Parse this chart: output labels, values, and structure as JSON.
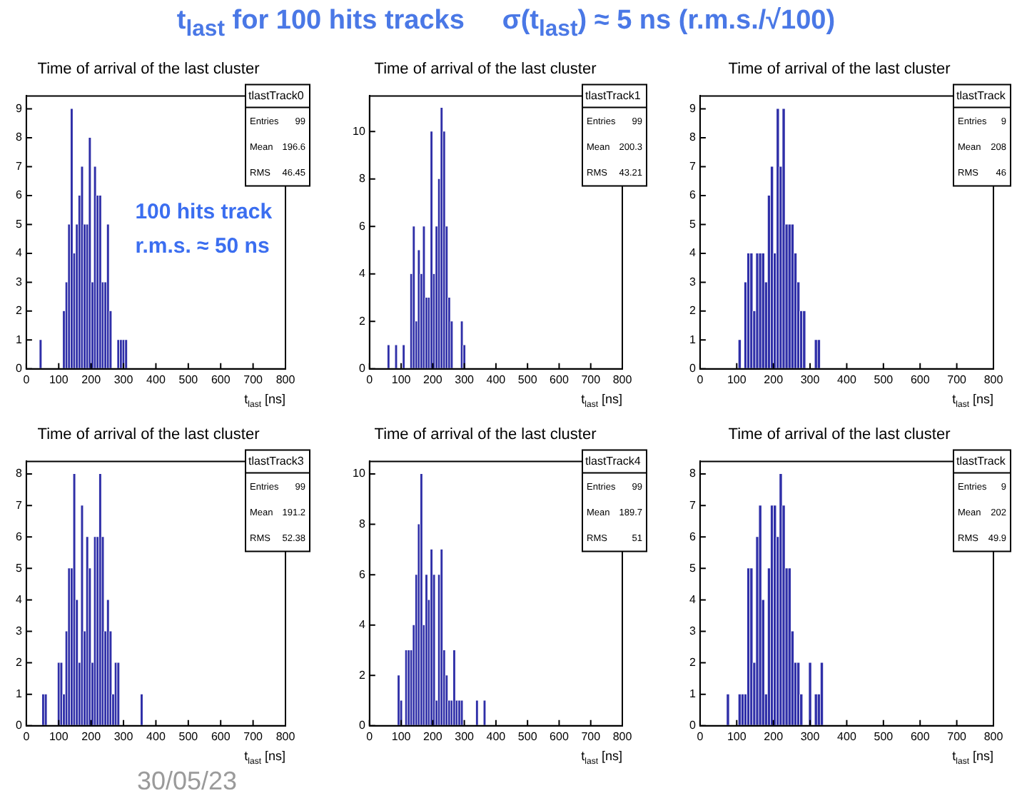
{
  "chart_data": [
    {
      "type": "histogram",
      "title": "Time of arrival of the last cluster",
      "xlabel": "t$_{last}$ [ns]",
      "color": "#2f2fa8",
      "bins": [
        40,
        48,
        56,
        64,
        72,
        80,
        88,
        96,
        104,
        112,
        120,
        128,
        136,
        144,
        152,
        160,
        168,
        176,
        184,
        192,
        200,
        208,
        216,
        224,
        232,
        240,
        248,
        256,
        264,
        272,
        280,
        288,
        296,
        304,
        312,
        320,
        328,
        336,
        344,
        352,
        360,
        368,
        376
      ],
      "values": [
        1,
        0,
        0,
        0,
        0,
        0,
        0,
        0,
        0,
        2,
        3,
        5,
        9,
        4,
        5,
        6,
        7,
        5,
        5,
        8,
        3,
        7,
        6,
        6,
        3,
        3,
        5,
        2,
        0,
        0,
        1,
        1,
        1,
        1,
        0,
        0,
        0,
        0,
        0,
        0,
        0,
        0
      ],
      "xlim": [
        0,
        800
      ],
      "xticks": [
        0,
        100,
        200,
        300,
        400,
        500,
        600,
        700,
        800
      ],
      "ylim": [
        0,
        9.45
      ],
      "yticks": [
        0,
        1,
        2,
        3,
        4,
        5,
        6,
        7,
        8,
        9
      ],
      "annotations": [
        "tlastTrack0",
        "Entries 99",
        "Mean 196.6",
        "RMS 46.45",
        "100 hits track\nr.m.s. ≈ 50 ns",
        "t$_{last}$ for 100 hits tracks     σ(t$_{last}$) ≈ 5 ns (r.m.s./√100)"
      ]
    },
    {
      "type": "histogram",
      "title": "Time of arrival of the last cluster",
      "xlabel": "t$_{last}$ [ns]",
      "color": "#2f2fa8",
      "bins": [
        40,
        48,
        56,
        64,
        72,
        80,
        88,
        96,
        104,
        112,
        120,
        128,
        136,
        144,
        152,
        160,
        168,
        176,
        184,
        192,
        200,
        208,
        216,
        224,
        232,
        240,
        248,
        256,
        264,
        272,
        280,
        288,
        296,
        304,
        312,
        320,
        328,
        336,
        344,
        352,
        360,
        368,
        376
      ],
      "values": [
        0,
        0,
        1,
        0,
        0,
        1,
        0,
        0,
        1,
        0,
        0,
        4,
        6,
        2,
        5,
        4,
        6,
        3,
        3,
        10,
        4,
        6,
        8,
        11,
        10,
        6,
        3,
        2,
        0,
        0,
        0,
        2,
        1,
        0,
        0,
        0,
        0,
        0,
        0,
        0,
        0,
        0
      ],
      "xlim": [
        0,
        800
      ],
      "xticks": [
        0,
        100,
        200,
        300,
        400,
        500,
        600,
        700,
        800
      ],
      "ylim": [
        0,
        11.5
      ],
      "yticks": [
        0,
        2,
        4,
        6,
        8,
        10
      ],
      "annotations": [
        "tlastTrack1",
        "Entries 99",
        "Mean 200.3",
        "RMS 43.21"
      ]
    },
    {
      "type": "histogram",
      "title": "Time of arrival of the last cluster",
      "xlabel": "t$_{last}$ [ns]",
      "color": "#2f2fa8",
      "bins": [
        40,
        48,
        56,
        64,
        72,
        80,
        88,
        96,
        104,
        112,
        120,
        128,
        136,
        144,
        152,
        160,
        168,
        176,
        184,
        192,
        200,
        208,
        216,
        224,
        232,
        240,
        248,
        256,
        264,
        272,
        280,
        288,
        296,
        304,
        312,
        320,
        328,
        336,
        344,
        352,
        360,
        368,
        376
      ],
      "values": [
        0,
        0,
        0,
        0,
        0,
        0,
        0,
        0,
        1,
        0,
        3,
        4,
        4,
        2,
        4,
        4,
        4,
        3,
        6,
        7,
        4,
        9,
        7,
        9,
        5,
        5,
        5,
        4,
        3,
        2,
        2,
        0,
        0,
        0,
        1,
        1,
        0,
        0,
        0,
        0,
        0,
        0
      ],
      "xlim": [
        0,
        800
      ],
      "xticks": [
        0,
        100,
        200,
        300,
        400,
        500,
        600,
        700,
        800
      ],
      "ylim": [
        0,
        9.45
      ],
      "yticks": [
        0,
        1,
        2,
        3,
        4,
        5,
        6,
        7,
        8,
        9
      ],
      "annotations": [
        "tlastTrack",
        "Entries 9",
        "Mean 208",
        "RMS 46"
      ]
    },
    {
      "type": "histogram",
      "title": "Time of arrival of the last cluster",
      "xlabel": "t$_{last}$ [ns]",
      "color": "#2f2fa8",
      "bins": [
        40,
        48,
        56,
        64,
        72,
        80,
        88,
        96,
        104,
        112,
        120,
        128,
        136,
        144,
        152,
        160,
        168,
        176,
        184,
        192,
        200,
        208,
        216,
        224,
        232,
        240,
        248,
        256,
        264,
        272,
        280,
        288,
        296,
        304,
        312,
        320,
        328,
        336,
        344,
        352,
        360,
        368,
        376
      ],
      "values": [
        0,
        1,
        1,
        0,
        0,
        0,
        0,
        2,
        2,
        1,
        3,
        5,
        5,
        8,
        4,
        2,
        7,
        3,
        6,
        5,
        2,
        6,
        6,
        8,
        6,
        3,
        4,
        3,
        1,
        2,
        2,
        0,
        0,
        0,
        0,
        0,
        0,
        0,
        0,
        1,
        0,
        0
      ],
      "xlim": [
        0,
        800
      ],
      "xticks": [
        0,
        100,
        200,
        300,
        400,
        500,
        600,
        700,
        800
      ],
      "ylim": [
        0,
        8.4
      ],
      "yticks": [
        0,
        1,
        2,
        3,
        4,
        5,
        6,
        7,
        8
      ],
      "annotations": [
        "tlastTrack3",
        "Entries 99",
        "Mean 191.2",
        "RMS 52.38",
        "30/05/23"
      ]
    },
    {
      "type": "histogram",
      "title": "Time of arrival of the last cluster",
      "xlabel": "t$_{last}$ [ns]",
      "color": "#2f2fa8",
      "bins": [
        40,
        48,
        56,
        64,
        72,
        80,
        88,
        96,
        104,
        112,
        120,
        128,
        136,
        144,
        152,
        160,
        168,
        176,
        184,
        192,
        200,
        208,
        216,
        224,
        232,
        240,
        248,
        256,
        264,
        272,
        280,
        288,
        296,
        304,
        312,
        320,
        328,
        336,
        344,
        352,
        360,
        368,
        376
      ],
      "values": [
        0,
        0,
        0,
        0,
        0,
        0,
        2,
        1,
        0,
        3,
        3,
        3,
        4,
        6,
        8,
        10,
        4,
        6,
        5,
        7,
        6,
        1,
        6,
        7,
        3,
        2,
        1,
        1,
        3,
        1,
        1,
        1,
        0,
        0,
        0,
        0,
        0,
        1,
        0,
        0,
        1,
        0
      ],
      "xlim": [
        0,
        800
      ],
      "xticks": [
        0,
        100,
        200,
        300,
        400,
        500,
        600,
        700,
        800
      ],
      "ylim": [
        0,
        10.5
      ],
      "yticks": [
        0,
        2,
        4,
        6,
        8,
        10
      ],
      "annotations": [
        "tlastTrack4",
        "Entries 99",
        "Mean 189.7",
        "RMS 51"
      ]
    },
    {
      "type": "histogram",
      "title": "Time of arrival of the last cluster",
      "xlabel": "t$_{last}$ [ns]",
      "color": "#2f2fa8",
      "bins": [
        40,
        48,
        56,
        64,
        72,
        80,
        88,
        96,
        104,
        112,
        120,
        128,
        136,
        144,
        152,
        160,
        168,
        176,
        184,
        192,
        200,
        208,
        216,
        224,
        232,
        240,
        248,
        256,
        264,
        272,
        280,
        288,
        296,
        304,
        312,
        320,
        328,
        336,
        344,
        352,
        360,
        368,
        376
      ],
      "values": [
        0,
        0,
        0,
        0,
        1,
        0,
        0,
        0,
        1,
        1,
        1,
        5,
        5,
        2,
        6,
        7,
        4,
        1,
        5,
        7,
        7,
        6,
        8,
        7,
        5,
        5,
        3,
        2,
        2,
        1,
        0,
        0,
        2,
        0,
        1,
        1,
        2,
        0,
        0,
        0,
        0,
        0
      ],
      "xlim": [
        0,
        800
      ],
      "xticks": [
        0,
        100,
        200,
        300,
        400,
        500,
        600,
        700,
        800
      ],
      "ylim": [
        0,
        8.4
      ],
      "yticks": [
        0,
        1,
        2,
        3,
        4,
        5,
        6,
        7,
        8
      ],
      "annotations": [
        "tlastTrack",
        "Entries 9",
        "Mean 202",
        "RMS 49.9"
      ]
    }
  ]
}
